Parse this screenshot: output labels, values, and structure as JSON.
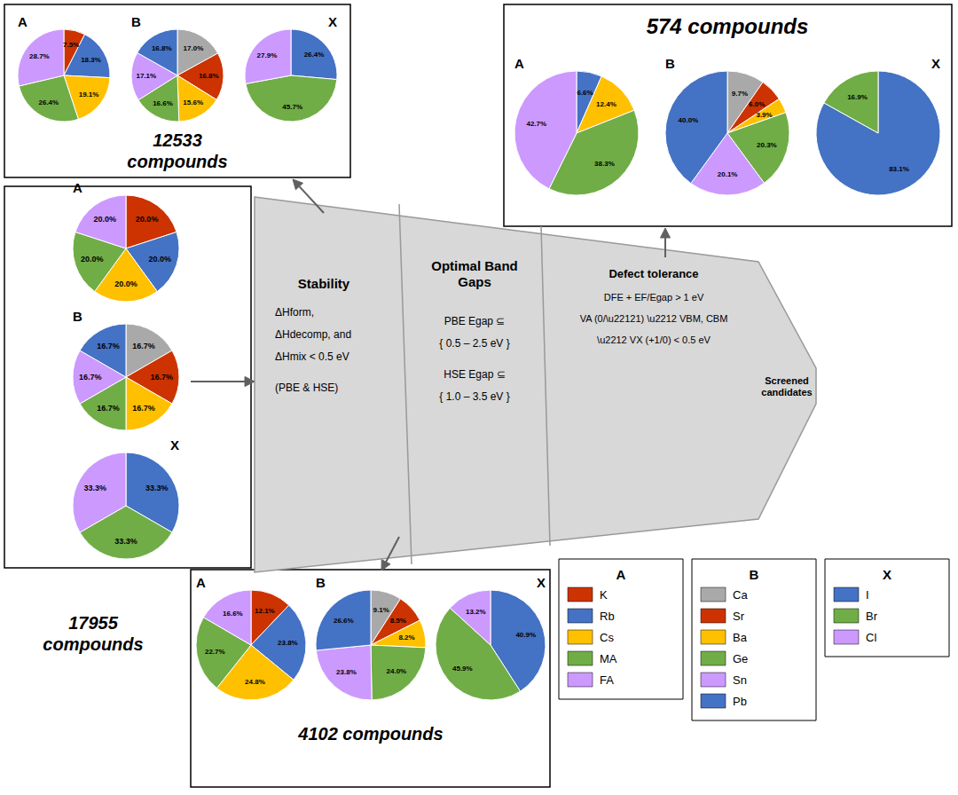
{
  "chart_data": [
    {
      "type": "pie",
      "title": "12533\ncompounds",
      "data_labels": true,
      "legend": "lower right",
      "series": [
        {
          "name": "A",
          "categories": [
            "K",
            "Rb",
            "Cs",
            "MA",
            "FA"
          ],
          "colors": [
            "#CC3300",
            "#4472C4",
            "#FFC000",
            "#70AD47",
            "#CC99FF"
          ],
          "values": [
            7.5,
            18.3,
            19.1,
            26.4,
            28.7
          ],
          "value_labels": [
            "7.5%",
            "18.3%",
            "19.1%",
            "26.4%",
            "28.7%"
          ]
        },
        {
          "name": "B",
          "categories": [
            "Ca",
            "Sr",
            "Ba",
            "Ge",
            "Sn",
            "Pb"
          ],
          "colors": [
            "#A9A9A9",
            "#CC3300",
            "#FFC000",
            "#70AD47",
            "#CC99FF",
            "#4472C4"
          ],
          "values": [
            17.0,
            16.8,
            15.6,
            16.6,
            17.1,
            16.8
          ],
          "value_labels": [
            "17.0%",
            "16.8%",
            "15.6%",
            "16.6%",
            "17.1%",
            "16.8%"
          ]
        },
        {
          "name": "X",
          "categories": [
            "I",
            "Br",
            "Cl"
          ],
          "colors": [
            "#4472C4",
            "#70AD47",
            "#CC99FF"
          ],
          "values": [
            26.4,
            45.7,
            27.9
          ],
          "value_labels": [
            "26.4%",
            "45.7%",
            "27.9%"
          ]
        }
      ]
    },
    {
      "type": "pie",
      "title": "17955\ncompounds",
      "data_labels": true,
      "series": [
        {
          "name": "A",
          "categories": [
            "K",
            "Rb",
            "Cs",
            "MA",
            "FA"
          ],
          "colors": [
            "#CC3300",
            "#4472C4",
            "#FFC000",
            "#70AD47",
            "#CC99FF"
          ],
          "values": [
            20.0,
            20.0,
            20.0,
            20.0,
            20.0
          ],
          "value_labels": [
            "20.0%",
            "20.0%",
            "20.0%",
            "20.0%",
            "20.0%"
          ]
        },
        {
          "name": "B",
          "categories": [
            "Ca",
            "Sr",
            "Ba",
            "Ge",
            "Sn",
            "Pb"
          ],
          "colors": [
            "#A9A9A9",
            "#CC3300",
            "#FFC000",
            "#70AD47",
            "#CC99FF",
            "#4472C4"
          ],
          "values": [
            16.7,
            16.7,
            16.7,
            16.7,
            16.7,
            16.7
          ],
          "value_labels": [
            "16.7%",
            "16.7%",
            "16.7%",
            "16.7%",
            "16.7%",
            "16.7%"
          ]
        },
        {
          "name": "X",
          "categories": [
            "I",
            "Br",
            "Cl"
          ],
          "colors": [
            "#4472C4",
            "#70AD47",
            "#CC99FF"
          ],
          "values": [
            33.3,
            33.3,
            33.3
          ],
          "value_labels": [
            "33.3%",
            "33.3%",
            "33.3%"
          ]
        }
      ]
    },
    {
      "type": "pie",
      "title": "4102 compounds",
      "data_labels": true,
      "series": [
        {
          "name": "A",
          "categories": [
            "K",
            "Rb",
            "Cs",
            "MA",
            "FA"
          ],
          "colors": [
            "#CC3300",
            "#4472C4",
            "#FFC000",
            "#70AD47",
            "#CC99FF"
          ],
          "values": [
            12.1,
            23.8,
            24.8,
            22.7,
            16.6
          ],
          "value_labels": [
            "12.1%",
            "23.8%",
            "24.8%",
            "22.7%",
            "16.6%"
          ]
        },
        {
          "name": "B",
          "categories": [
            "Ca",
            "Sr",
            "Ba",
            "Ge",
            "Sn",
            "Pb"
          ],
          "colors": [
            "#A9A9A9",
            "#CC3300",
            "#FFC000",
            "#70AD47",
            "#CC99FF",
            "#4472C4"
          ],
          "values": [
            9.1,
            8.5,
            8.2,
            24.0,
            23.8,
            26.6
          ],
          "value_labels": [
            "9.1%",
            "8.5%",
            "8.2%",
            "24.0%",
            "23.8%",
            "26.6%"
          ]
        },
        {
          "name": "X",
          "categories": [
            "I",
            "Br",
            "Cl"
          ],
          "colors": [
            "#4472C4",
            "#70AD47",
            "#CC99FF"
          ],
          "values": [
            40.9,
            45.9,
            13.2
          ],
          "value_labels": [
            "40.9%",
            "45.9%",
            "13.2%"
          ]
        }
      ]
    },
    {
      "type": "pie",
      "title": "574 compounds",
      "data_labels": true,
      "series": [
        {
          "name": "A",
          "categories": [
            "Rb",
            "Cs",
            "MA",
            "FA"
          ],
          "colors": [
            "#4472C4",
            "#FFC000",
            "#70AD47",
            "#CC99FF"
          ],
          "values": [
            6.6,
            12.4,
            38.3,
            42.7
          ],
          "value_labels": [
            "6.6%",
            "12.4%",
            "38.3%",
            "42.7%"
          ]
        },
        {
          "name": "B",
          "categories": [
            "Ca",
            "Sr",
            "Ba",
            "Ge",
            "Sn",
            "Pb"
          ],
          "colors": [
            "#A9A9A9",
            "#CC3300",
            "#FFC000",
            "#70AD47",
            "#CC99FF",
            "#4472C4"
          ],
          "values": [
            9.7,
            6.0,
            3.9,
            20.3,
            20.1,
            40.0
          ],
          "value_labels": [
            "9.7%",
            "6.0%",
            "3.9%",
            "20.3%",
            "20.1%",
            "40.0%"
          ]
        },
        {
          "name": "X",
          "categories": [
            "I",
            "Br"
          ],
          "colors": [
            "#4472C4",
            "#70AD47"
          ],
          "values": [
            83.1,
            16.9
          ],
          "value_labels": [
            "83.1%",
            "16.9%"
          ]
        }
      ]
    },
    {
      "type": "diagram",
      "annotations": [
        "Stability",
        "ΔHform,",
        "ΔHdecomp, and",
        "ΔHmix < 0.5 eV",
        "(PBE & HSE)",
        "Optimal Band\nGaps",
        "PBE Egap ⊆",
        "{ 0.5 – 2.5 eV }",
        "HSE Egap ⊆",
        "{ 1.0 – 3.5 eV }",
        "Defect tolerance",
        "DFE + EF/Egap > 1 eV",
        "VA (0/\\u22121) \\u2212 VBM, CBM",
        "\\u2212 VX (+1/0) < 0.5 eV",
        "Screened\ncandidates"
      ]
    }
  ]
}
